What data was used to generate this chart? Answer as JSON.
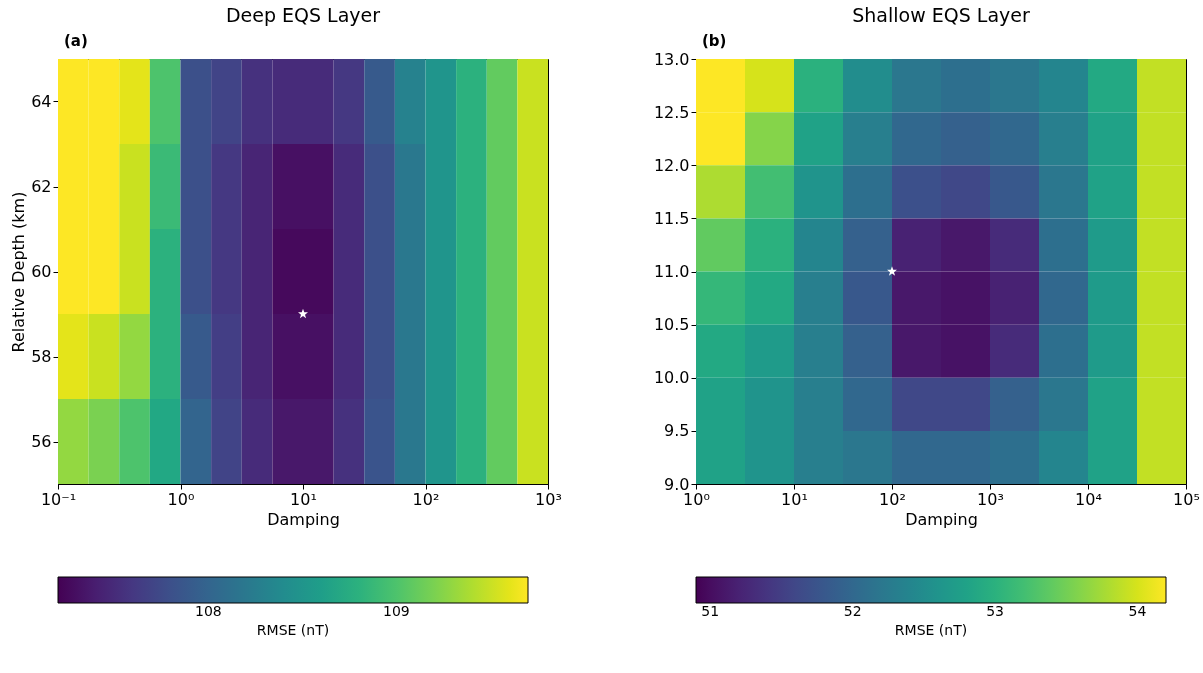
{
  "chart_data": [
    {
      "type": "heatmap",
      "title": "Deep EQS Layer",
      "annotations": [
        "(a)"
      ],
      "xlabel": "Damping",
      "ylabel": "Relative Depth (km)",
      "clabel": "RMSE (nT)",
      "log": "x",
      "grid": false,
      "xlim": [
        0.1,
        1000
      ],
      "xticks": [
        {
          "value": 0.1,
          "label": "10⁻¹"
        },
        {
          "value": 1,
          "label": "10⁰"
        },
        {
          "value": 10,
          "label": "10¹"
        },
        {
          "value": 100,
          "label": "10²"
        },
        {
          "value": 1000,
          "label": "10³"
        }
      ],
      "ylim": [
        55,
        65
      ],
      "yticks": [
        56,
        58,
        60,
        62,
        64
      ],
      "clim": [
        107.2,
        109.7
      ],
      "cticks": [
        108,
        109
      ],
      "cells": [
        [
          109.7,
          109.7,
          109.6,
          109.0,
          107.8,
          107.7,
          107.55,
          107.5,
          107.5,
          107.6,
          107.9,
          108.3,
          108.5,
          108.8,
          109.1,
          109.5
        ],
        [
          109.7,
          109.7,
          109.5,
          108.9,
          107.8,
          107.6,
          107.45,
          107.3,
          107.3,
          107.5,
          107.8,
          108.2,
          108.5,
          108.8,
          109.1,
          109.5
        ],
        [
          109.7,
          109.7,
          109.5,
          108.8,
          107.8,
          107.6,
          107.45,
          107.25,
          107.25,
          107.5,
          107.8,
          108.2,
          108.5,
          108.8,
          109.1,
          109.5
        ],
        [
          109.6,
          109.5,
          109.3,
          108.8,
          107.9,
          107.65,
          107.45,
          107.3,
          107.3,
          107.5,
          107.8,
          108.2,
          108.5,
          108.8,
          109.1,
          109.5
        ],
        [
          109.3,
          109.2,
          109.0,
          108.7,
          108.0,
          107.7,
          107.5,
          107.35,
          107.35,
          107.55,
          107.85,
          108.2,
          108.5,
          108.8,
          109.1,
          109.5
        ]
      ],
      "series": [
        {
          "type": "scatter",
          "marker": "star",
          "color": "#ffffff",
          "x": [
            10
          ],
          "values": [
            59
          ]
        }
      ]
    },
    {
      "type": "heatmap",
      "title": "Shallow EQS Layer",
      "annotations": [
        "(b)"
      ],
      "xlabel": "Damping",
      "clabel": "RMSE (nT)",
      "log": "x",
      "grid": false,
      "xlim": [
        1,
        100000
      ],
      "xticks": [
        {
          "value": 1,
          "label": "10⁰"
        },
        {
          "value": 10,
          "label": "10¹"
        },
        {
          "value": 100,
          "label": "10²"
        },
        {
          "value": 1000,
          "label": "10³"
        },
        {
          "value": 10000,
          "label": "10⁴"
        },
        {
          "value": 100000,
          "label": "10⁵"
        }
      ],
      "ylim": [
        9,
        13
      ],
      "yticks": [
        {
          "value": 9,
          "label": "9.0"
        },
        9.5,
        {
          "value": 10,
          "label": "10.0"
        },
        10.5,
        {
          "value": 11,
          "label": "11.0"
        },
        11.5,
        {
          "value": 12,
          "label": "12.0"
        },
        12.5,
        {
          "value": 13,
          "label": "13.0"
        }
      ],
      "clim": [
        50.9,
        54.2
      ],
      "cticks": [
        51,
        52,
        53,
        54
      ],
      "cells": [
        [
          54.2,
          54.0,
          53.0,
          52.5,
          52.2,
          52.1,
          52.2,
          52.4,
          52.9,
          53.9
        ],
        [
          54.2,
          53.6,
          52.8,
          52.3,
          52.0,
          51.9,
          52.0,
          52.3,
          52.8,
          53.9
        ],
        [
          53.8,
          53.2,
          52.6,
          52.1,
          51.7,
          51.6,
          51.8,
          52.2,
          52.8,
          53.9
        ],
        [
          53.4,
          53.0,
          52.4,
          51.9,
          51.2,
          51.1,
          51.3,
          52.1,
          52.7,
          53.9
        ],
        [
          53.1,
          52.9,
          52.3,
          51.8,
          51.1,
          51.05,
          51.2,
          52.0,
          52.7,
          53.9
        ],
        [
          52.9,
          52.7,
          52.3,
          51.9,
          51.1,
          51.05,
          51.3,
          52.1,
          52.7,
          53.9
        ],
        [
          52.8,
          52.6,
          52.3,
          52.0,
          51.6,
          51.6,
          51.9,
          52.2,
          52.8,
          53.9
        ],
        [
          52.8,
          52.6,
          52.3,
          52.2,
          52.0,
          52.0,
          52.1,
          52.4,
          52.8,
          53.9
        ]
      ],
      "series": [
        {
          "type": "scatter",
          "marker": "star",
          "color": "#ffffff",
          "x": [
            100
          ],
          "values": [
            11
          ]
        }
      ]
    }
  ]
}
